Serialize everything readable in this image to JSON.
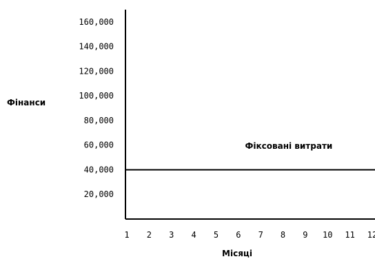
{
  "chart_data": {
    "type": "line",
    "title": "",
    "xlabel": "Місяці",
    "ylabel": "Фінанси",
    "x": [
      1,
      2,
      3,
      4,
      5,
      6,
      7,
      8,
      9,
      10,
      11,
      12
    ],
    "x_tick_labels": [
      "1",
      "2",
      "3",
      "4",
      "5",
      "6",
      "7",
      "8",
      "9",
      "10",
      "11",
      "12"
    ],
    "y_tick_values": [
      20000,
      40000,
      60000,
      80000,
      100000,
      120000,
      140000,
      160000
    ],
    "y_tick_labels": [
      "20,000",
      "40,000",
      "60,000",
      "80,000",
      "100,000",
      "120,000",
      "140,000",
      "160,000"
    ],
    "ylim": [
      0,
      170000
    ],
    "xlim": [
      1,
      12
    ],
    "grid": false,
    "legend": "none",
    "series": [
      {
        "values": [
          40000,
          40000,
          40000,
          40000,
          40000,
          40000,
          40000,
          40000,
          40000,
          40000,
          40000,
          40000
        ],
        "color": "#000000"
      }
    ],
    "annotations": [
      {
        "text": "Фіксовані витрати",
        "x": 6.3,
        "y": 57000
      }
    ]
  }
}
